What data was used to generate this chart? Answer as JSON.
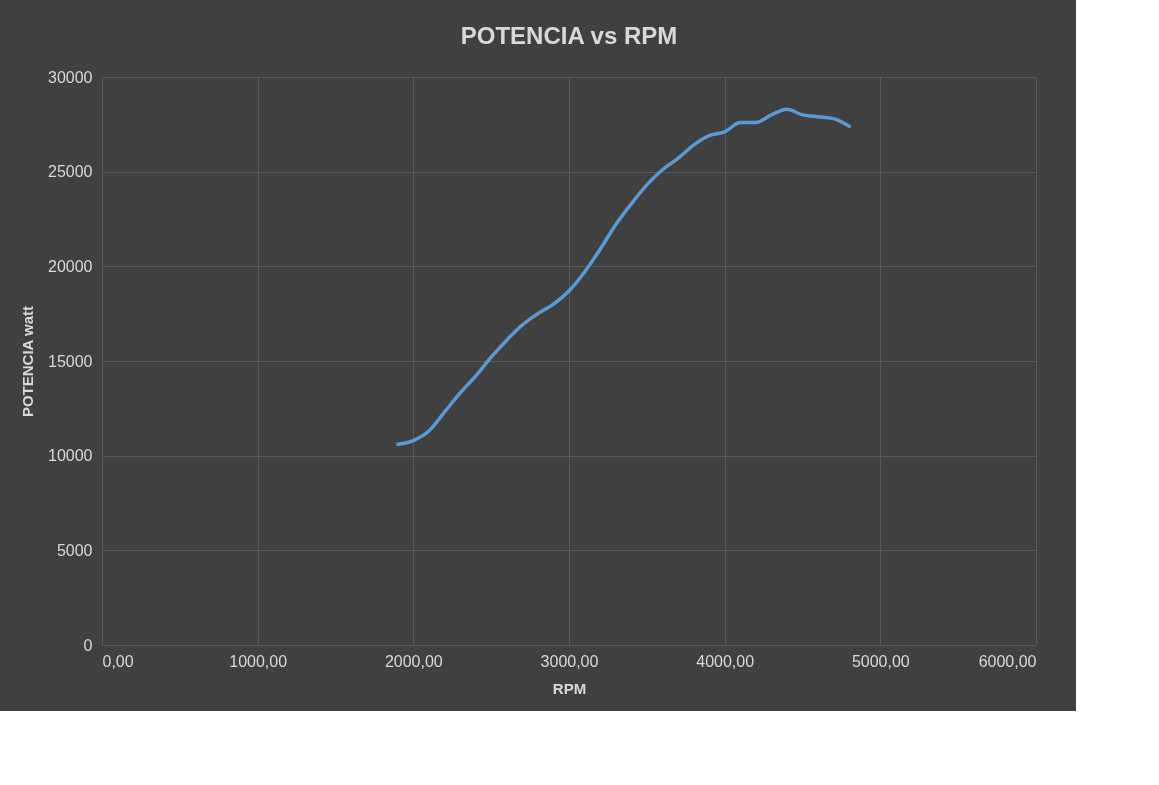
{
  "chart_data": {
    "type": "line",
    "title": "POTENCIA vs RPM",
    "xlabel": "RPM",
    "ylabel": "POTENCIA watt",
    "x": [
      1900,
      2000,
      2100,
      2200,
      2300,
      2400,
      2500,
      2600,
      2700,
      2800,
      2900,
      3000,
      3100,
      3200,
      3300,
      3400,
      3500,
      3600,
      3700,
      3800,
      3900,
      4000,
      4100,
      4200,
      4300,
      4400,
      4500,
      4600,
      4700,
      4800
    ],
    "series": [
      {
        "color": "#5b9bd5",
        "values": [
          10600,
          10800,
          11300,
          12300,
          13300,
          14200,
          15200,
          16100,
          16900,
          17500,
          18000,
          18700,
          19700,
          20900,
          22200,
          23300,
          24300,
          25100,
          25700,
          26400,
          26900,
          27100,
          27600,
          27600,
          28000,
          28300,
          28000,
          27900,
          27800,
          27400
        ]
      }
    ],
    "xlim": [
      0,
      6000
    ],
    "ylim": [
      0,
      30000
    ],
    "xticks": [
      {
        "value": 0,
        "label": "0,00"
      },
      {
        "value": 1000,
        "label": "1000,00"
      },
      {
        "value": 2000,
        "label": "2000,00"
      },
      {
        "value": 3000,
        "label": "3000,00"
      },
      {
        "value": 4000,
        "label": "4000,00"
      },
      {
        "value": 5000,
        "label": "5000,00"
      },
      {
        "value": 6000,
        "label": "6000,00"
      }
    ],
    "yticks": [
      0,
      5000,
      10000,
      15000,
      20000,
      25000,
      30000
    ],
    "grid": true,
    "legend": false,
    "marker": "none",
    "line_style": "solid"
  }
}
